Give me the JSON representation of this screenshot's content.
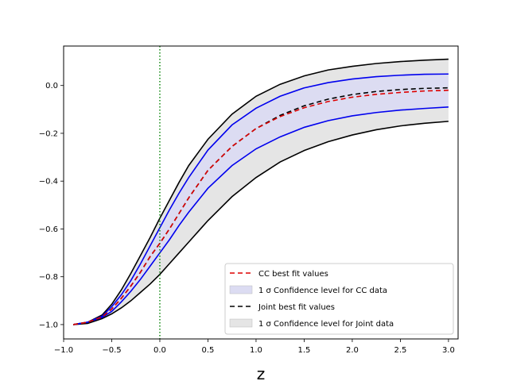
{
  "chart_data": {
    "type": "line",
    "title": "",
    "xlabel": "z",
    "ylabel": "",
    "xlim": [
      -1.0,
      3.1
    ],
    "ylim": [
      -1.06,
      0.165
    ],
    "xticks": [
      -1.0,
      -0.5,
      0.0,
      0.5,
      1.0,
      1.5,
      2.0,
      2.5,
      3.0
    ],
    "xtick_labels": [
      "−1.0",
      "−0.5",
      "0.0",
      "0.5",
      "1.0",
      "1.5",
      "2.0",
      "2.5",
      "3.0"
    ],
    "yticks": [
      0.0,
      -0.2,
      -0.4,
      -0.6,
      -0.8,
      -1.0
    ],
    "ytick_labels": [
      "0.0",
      "−0.2",
      "−0.4",
      "−0.6",
      "−0.8",
      "−1.0"
    ],
    "grid": false,
    "legend_position": "bottom-right",
    "vline": {
      "x": 0.0,
      "color": "#008000",
      "style": "dotted"
    },
    "x": [
      -0.9,
      -0.75,
      -0.6,
      -0.5,
      -0.4,
      -0.3,
      -0.2,
      -0.1,
      0.0,
      0.1,
      0.2,
      0.3,
      0.5,
      0.75,
      1.0,
      1.25,
      1.5,
      1.75,
      2.0,
      2.25,
      2.5,
      2.75,
      3.0
    ],
    "series": [
      {
        "name": "1 σ Confidence level for Joint data",
        "kind": "band",
        "color": "#e5e5e5",
        "edge_color": "#000000",
        "upper": [
          -1.0,
          -0.99,
          -0.96,
          -0.915,
          -0.855,
          -0.785,
          -0.71,
          -0.635,
          -0.555,
          -0.48,
          -0.405,
          -0.335,
          -0.225,
          -0.12,
          -0.045,
          0.005,
          0.04,
          0.065,
          0.08,
          0.092,
          0.1,
          0.106,
          0.11
        ],
        "lower": [
          -1.0,
          -0.995,
          -0.975,
          -0.955,
          -0.93,
          -0.9,
          -0.865,
          -0.83,
          -0.79,
          -0.745,
          -0.7,
          -0.655,
          -0.565,
          -0.465,
          -0.385,
          -0.32,
          -0.272,
          -0.235,
          -0.207,
          -0.185,
          -0.169,
          -0.158,
          -0.15
        ]
      },
      {
        "name": "1 σ Confidence level for CC data",
        "kind": "band",
        "color": "#dcdcf2",
        "edge_color": "#0000ee",
        "upper": [
          -1.0,
          -0.99,
          -0.965,
          -0.925,
          -0.875,
          -0.815,
          -0.745,
          -0.67,
          -0.595,
          -0.52,
          -0.45,
          -0.385,
          -0.27,
          -0.165,
          -0.095,
          -0.045,
          -0.01,
          0.012,
          0.027,
          0.037,
          0.043,
          0.047,
          0.048
        ],
        "lower": [
          -1.0,
          -0.99,
          -0.97,
          -0.945,
          -0.905,
          -0.86,
          -0.81,
          -0.755,
          -0.7,
          -0.645,
          -0.585,
          -0.53,
          -0.43,
          -0.335,
          -0.265,
          -0.215,
          -0.175,
          -0.147,
          -0.127,
          -0.113,
          -0.103,
          -0.096,
          -0.09
        ]
      },
      {
        "name": "Joint best fit values",
        "kind": "line",
        "color": "#000000",
        "dash": "6,4",
        "values": [
          -1.0,
          -0.99,
          -0.968,
          -0.935,
          -0.89,
          -0.838,
          -0.78,
          -0.715,
          -0.66,
          -0.6,
          -0.535,
          -0.47,
          -0.355,
          -0.255,
          -0.18,
          -0.125,
          -0.085,
          -0.057,
          -0.038,
          -0.025,
          -0.017,
          -0.012,
          -0.01
        ]
      },
      {
        "name": "CC best fit values",
        "kind": "line",
        "color": "#dd0000",
        "dash": "6,4",
        "values": [
          -1.0,
          -0.99,
          -0.968,
          -0.935,
          -0.89,
          -0.838,
          -0.78,
          -0.715,
          -0.66,
          -0.6,
          -0.535,
          -0.47,
          -0.355,
          -0.255,
          -0.18,
          -0.13,
          -0.093,
          -0.067,
          -0.049,
          -0.037,
          -0.029,
          -0.023,
          -0.02
        ]
      }
    ],
    "legend": [
      {
        "label": "CC best fit values",
        "kind": "line",
        "color": "#dd0000"
      },
      {
        "label": "1 σ Confidence level for CC data",
        "kind": "patch",
        "color": "#dcdcf2"
      },
      {
        "label": "Joint best fit values",
        "kind": "line",
        "color": "#000000"
      },
      {
        "label": "1 σ Confidence level for Joint data",
        "kind": "patch",
        "color": "#e5e5e5"
      }
    ]
  }
}
